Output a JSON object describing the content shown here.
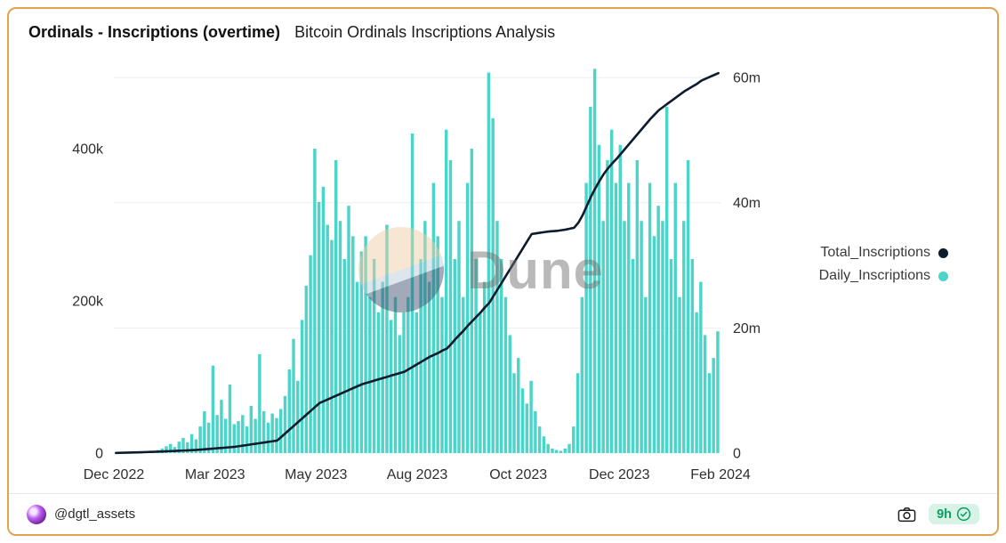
{
  "card": {
    "title": "Ordinals - Inscriptions (overtime)",
    "subtitle": "Bitcoin Ordinals Inscriptions Analysis",
    "border_color": "#E2A24F"
  },
  "watermark": {
    "text": "Dune"
  },
  "legend": [
    {
      "label": "Total_Inscriptions",
      "color": "#0D1B2E"
    },
    {
      "label": "Daily_Inscriptions",
      "color": "#4BD4C8"
    }
  ],
  "footer": {
    "handle": "@dgtl_assets",
    "time_badge": "9h",
    "camera_icon": "camera-icon",
    "check_icon": "check-circle-icon"
  },
  "chart_data": {
    "type": "combo",
    "title": "Ordinals - Inscriptions (overtime)",
    "subtitle": "Bitcoin Ordinals Inscriptions Analysis",
    "grid": "horizontal-light",
    "legend_position": "right",
    "x_tick_labels": [
      "Dec 2022",
      "Mar 2023",
      "May 2023",
      "Aug 2023",
      "Oct 2023",
      "Dec 2023",
      "Feb 2024"
    ],
    "x_range": [
      "Dec 2022",
      "Feb 2024"
    ],
    "left_axis": {
      "series": "Daily_Inscriptions",
      "ticks": [
        "0",
        "200k",
        "400k"
      ],
      "tick_values": [
        0,
        200,
        400
      ],
      "unit": "thousand inscriptions per day",
      "max": 510
    },
    "right_axis": {
      "series": "Total_Inscriptions",
      "ticks": [
        "0",
        "20m",
        "40m",
        "60m"
      ],
      "tick_values": [
        0,
        20,
        40,
        60
      ],
      "unit": "million inscriptions cumulative",
      "max": 62
    },
    "sampling_note": "values estimated from chart at ~3-day intervals Dec 2022 to Feb 2024",
    "series": [
      {
        "name": "Daily_Inscriptions",
        "type": "bar",
        "color": "#4BD4C8",
        "unit": "thousands",
        "values": [
          0.3,
          0.5,
          1,
          0.8,
          1.5,
          2,
          1.2,
          2.5,
          3,
          2,
          4,
          6,
          9,
          12,
          8,
          15,
          20,
          14,
          25,
          18,
          35,
          55,
          40,
          115,
          50,
          70,
          45,
          90,
          38,
          42,
          50,
          35,
          62,
          45,
          130,
          55,
          40,
          52,
          46,
          58,
          75,
          110,
          150,
          95,
          175,
          220,
          260,
          400,
          330,
          350,
          300,
          280,
          385,
          305,
          255,
          325,
          285,
          225,
          265,
          285,
          205,
          255,
          185,
          225,
          300,
          175,
          205,
          155,
          185,
          205,
          420,
          185,
          255,
          305,
          225,
          355,
          285,
          205,
          425,
          385,
          255,
          305,
          205,
          355,
          400,
          255,
          185,
          225,
          500,
          440,
          305,
          255,
          205,
          155,
          105,
          125,
          85,
          65,
          95,
          55,
          35,
          22,
          12,
          6,
          4,
          3,
          6,
          12,
          35,
          105,
          205,
          355,
          455,
          505,
          405,
          305,
          385,
          425,
          355,
          405,
          305,
          355,
          255,
          385,
          305,
          205,
          355,
          285,
          325,
          305,
          455,
          255,
          355,
          205,
          305,
          385,
          255,
          185,
          225,
          155,
          105,
          125,
          160
        ]
      },
      {
        "name": "Total_Inscriptions",
        "type": "line",
        "color": "#0D1B2E",
        "unit": "millions",
        "values": [
          0.02,
          0.04,
          0.06,
          0.08,
          0.1,
          0.12,
          0.14,
          0.16,
          0.18,
          0.2,
          0.23,
          0.26,
          0.29,
          0.32,
          0.35,
          0.38,
          0.41,
          0.44,
          0.47,
          0.5,
          0.56,
          0.61,
          0.67,
          0.72,
          0.78,
          0.83,
          0.89,
          0.94,
          1.0,
          1.1,
          1.2,
          1.3,
          1.4,
          1.5,
          1.6,
          1.7,
          1.8,
          1.9,
          2.0,
          2.6,
          3.2,
          3.8,
          4.4,
          5.0,
          5.6,
          6.2,
          6.8,
          7.4,
          8.0,
          8.3,
          8.6,
          8.9,
          9.2,
          9.5,
          9.8,
          10.1,
          10.4,
          10.7,
          11.0,
          11.2,
          11.4,
          11.6,
          11.8,
          12.0,
          12.2,
          12.4,
          12.6,
          12.8,
          13.0,
          13.4,
          13.8,
          14.2,
          14.6,
          15.0,
          15.4,
          15.7,
          16.0,
          16.4,
          16.7,
          17.4,
          18.2,
          18.9,
          19.6,
          20.4,
          21.1,
          21.8,
          22.5,
          23.3,
          24.0,
          25.1,
          26.2,
          27.3,
          28.4,
          29.5,
          30.6,
          31.7,
          32.8,
          33.9,
          35.0,
          35.1,
          35.2,
          35.3,
          35.4,
          35.45,
          35.5,
          35.6,
          35.7,
          35.85,
          36.0,
          36.8,
          38.0,
          39.5,
          41.0,
          42.3,
          43.5,
          44.6,
          45.5,
          46.3,
          47.0,
          47.8,
          48.6,
          49.4,
          50.2,
          51.0,
          51.8,
          52.6,
          53.4,
          54.1,
          54.8,
          55.3,
          55.8,
          56.3,
          56.8,
          57.3,
          57.8,
          58.2,
          58.6,
          59.0,
          59.5,
          59.8,
          60.1,
          60.4,
          60.7
        ]
      }
    ]
  }
}
